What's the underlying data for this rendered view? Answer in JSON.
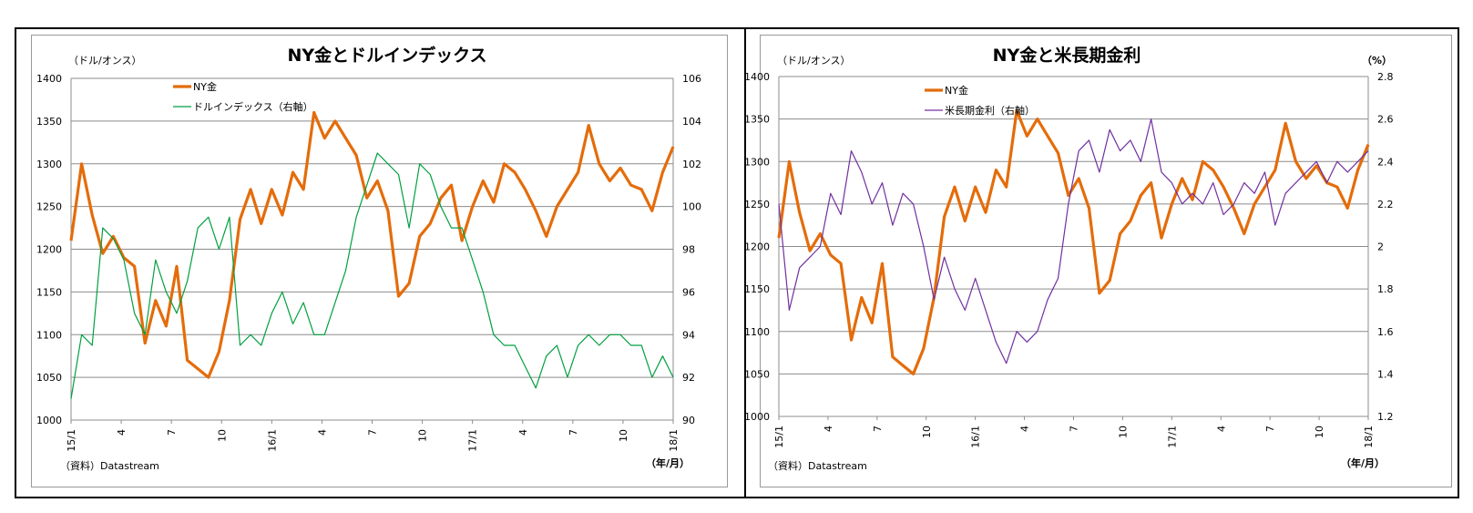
{
  "chart_data": [
    {
      "type": "line",
      "title": "NY金とドルインデックス",
      "ylabel_left": "（ドル/オンス）",
      "ylabel_right": "",
      "xlabel": "（年/月）",
      "source": "（資料）Datastream",
      "ylim_left": [
        1000,
        1400
      ],
      "yticks_left": [
        "1000",
        "1050",
        "1100",
        "1150",
        "1200",
        "1250",
        "1300",
        "1350",
        "1400"
      ],
      "ylim_right": [
        90,
        106
      ],
      "yticks_right": [
        "90",
        "92",
        "94",
        "96",
        "98",
        "100",
        "102",
        "104",
        "106"
      ],
      "xticks": [
        "15/1",
        "4",
        "7",
        "10",
        "16/1",
        "4",
        "7",
        "10",
        "17/1",
        "4",
        "7",
        "10",
        "18/1"
      ],
      "grid": true,
      "legend_position": "top-left",
      "series": [
        {
          "name": "NY金",
          "axis": "left",
          "color": "#E46C0A",
          "values": [
            1210,
            1300,
            1240,
            1195,
            1215,
            1190,
            1180,
            1090,
            1140,
            1110,
            1180,
            1070,
            1060,
            1050,
            1080,
            1140,
            1235,
            1270,
            1230,
            1270,
            1240,
            1290,
            1270,
            1360,
            1330,
            1350,
            1330,
            1310,
            1260,
            1280,
            1245,
            1145,
            1160,
            1215,
            1230,
            1260,
            1275,
            1210,
            1250,
            1280,
            1255,
            1300,
            1290,
            1270,
            1245,
            1215,
            1250,
            1270,
            1290,
            1345,
            1300,
            1280,
            1295,
            1275,
            1270,
            1245,
            1290,
            1320
          ]
        },
        {
          "name": "ドルインデックス（右軸）",
          "axis": "right",
          "color": "#00A040",
          "values": [
            91,
            94,
            93.5,
            99,
            98.5,
            97.5,
            95,
            94,
            97.5,
            96,
            95,
            96.5,
            99,
            99.5,
            98,
            99.5,
            93.5,
            94,
            93.5,
            95,
            96,
            94.5,
            95.5,
            94,
            94,
            95.5,
            97,
            99.5,
            101,
            102.5,
            102,
            101.5,
            99,
            102,
            101.5,
            100,
            99,
            99,
            97.5,
            96,
            94,
            93.5,
            93.5,
            92.5,
            91.5,
            93,
            93.5,
            92,
            93.5,
            94,
            93.5,
            94,
            94,
            93.5,
            93.5,
            92,
            93,
            92
          ]
        }
      ]
    },
    {
      "type": "line",
      "title": "NY金と米長期金利",
      "ylabel_left": "（ドル/オンス）",
      "ylabel_right": "（%）",
      "xlabel": "（年/月）",
      "source": "（資料）Datastream",
      "ylim_left": [
        1000,
        1400
      ],
      "yticks_left": [
        "1000",
        "1050",
        "1100",
        "1150",
        "1200",
        "1250",
        "1300",
        "1350",
        "1400"
      ],
      "ylim_right": [
        1.2,
        2.8
      ],
      "yticks_right": [
        "1.2",
        "1.4",
        "1.6",
        "1.8",
        "2",
        "2.2",
        "2.4",
        "2.6",
        "2.8"
      ],
      "xticks": [
        "15/1",
        "4",
        "7",
        "10",
        "16/1",
        "4",
        "7",
        "10",
        "17/1",
        "4",
        "7",
        "10",
        "18/1"
      ],
      "grid": true,
      "legend_position": "top-left",
      "series": [
        {
          "name": "NY金",
          "axis": "left",
          "color": "#E46C0A",
          "values": [
            1210,
            1300,
            1240,
            1195,
            1215,
            1190,
            1180,
            1090,
            1140,
            1110,
            1180,
            1070,
            1060,
            1050,
            1080,
            1140,
            1235,
            1270,
            1230,
            1270,
            1240,
            1290,
            1270,
            1360,
            1330,
            1350,
            1330,
            1310,
            1260,
            1280,
            1245,
            1145,
            1160,
            1215,
            1230,
            1260,
            1275,
            1210,
            1250,
            1280,
            1255,
            1300,
            1290,
            1270,
            1245,
            1215,
            1250,
            1270,
            1290,
            1345,
            1300,
            1280,
            1295,
            1275,
            1270,
            1245,
            1290,
            1320
          ]
        },
        {
          "name": "米長期金利（右軸）",
          "axis": "right",
          "color": "#7030A0",
          "values": [
            2.2,
            1.7,
            1.9,
            1.95,
            2.0,
            2.25,
            2.15,
            2.45,
            2.35,
            2.2,
            2.3,
            2.1,
            2.25,
            2.2,
            2.0,
            1.75,
            1.95,
            1.8,
            1.7,
            1.85,
            1.7,
            1.55,
            1.45,
            1.6,
            1.55,
            1.6,
            1.75,
            1.85,
            2.2,
            2.45,
            2.5,
            2.35,
            2.55,
            2.45,
            2.5,
            2.4,
            2.6,
            2.35,
            2.3,
            2.2,
            2.25,
            2.2,
            2.3,
            2.15,
            2.2,
            2.3,
            2.25,
            2.35,
            2.1,
            2.25,
            2.3,
            2.35,
            2.4,
            2.3,
            2.4,
            2.35,
            2.4,
            2.45
          ]
        }
      ]
    }
  ]
}
